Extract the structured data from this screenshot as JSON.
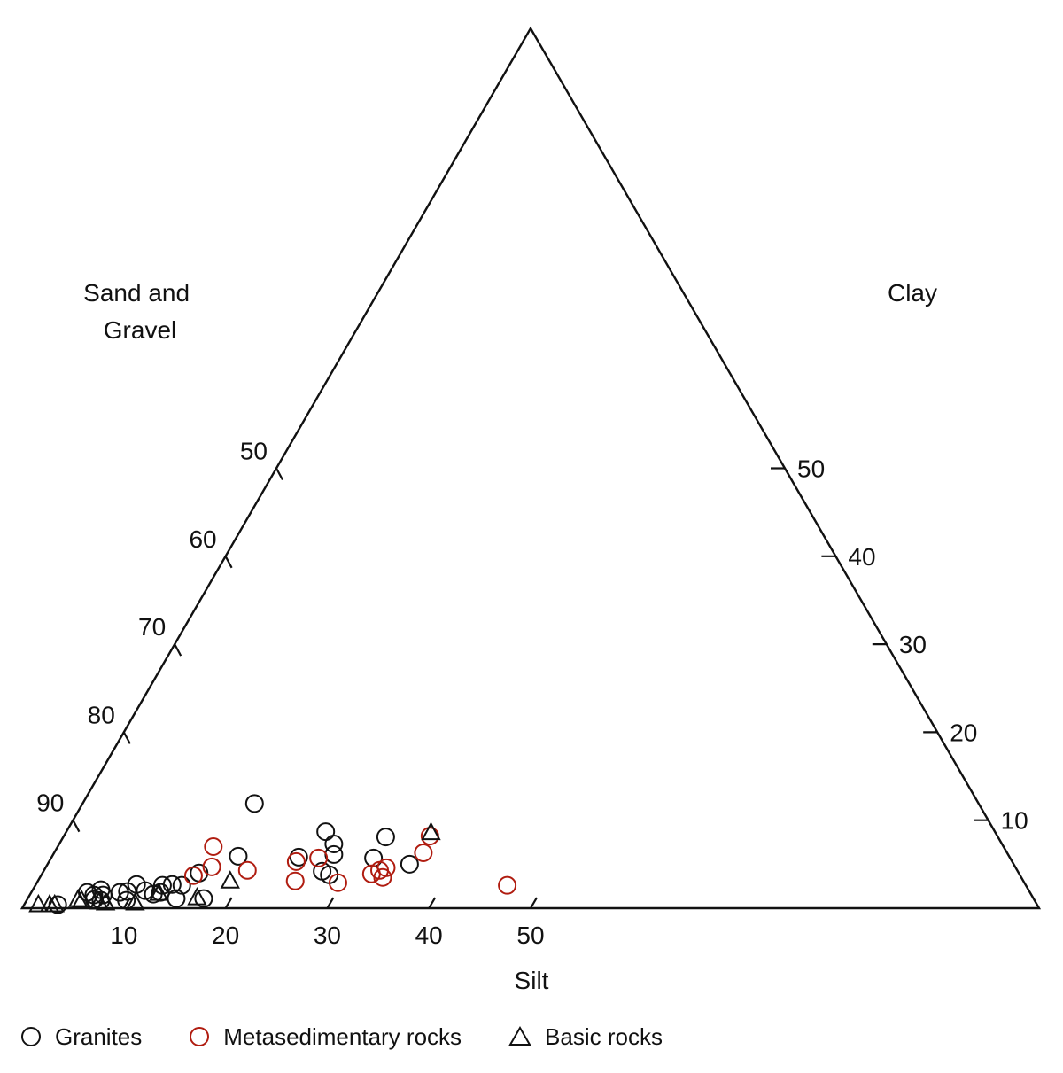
{
  "chart_data": {
    "type": "scatter",
    "subtype": "ternary",
    "axes": {
      "sand_gravel": {
        "label": "Sand and Gravel",
        "ticks": [
          "50",
          "60",
          "70",
          "80",
          "90"
        ]
      },
      "clay": {
        "label": "Clay",
        "ticks": [
          "50",
          "40",
          "30",
          "20",
          "10"
        ]
      },
      "silt": {
        "label": "Silt",
        "ticks": [
          "10",
          "20",
          "30",
          "40",
          "50"
        ]
      }
    },
    "series": [
      {
        "name": "Granites",
        "marker": "circle",
        "color": "#111111",
        "points": [
          {
            "silt": 3.3,
            "clay": 0.4
          },
          {
            "silt": 5.5,
            "clay": 1.8
          },
          {
            "silt": 6.3,
            "clay": 1.5
          },
          {
            "silt": 6.7,
            "clay": 2.1
          },
          {
            "silt": 7.2,
            "clay": 1.5
          },
          {
            "silt": 6.6,
            "clay": 1.0
          },
          {
            "silt": 7.3,
            "clay": 0.9
          },
          {
            "silt": 8.7,
            "clay": 1.8
          },
          {
            "silt": 9.4,
            "clay": 1.9
          },
          {
            "silt": 9.9,
            "clay": 2.7
          },
          {
            "silt": 9.8,
            "clay": 0.9
          },
          {
            "silt": 11.1,
            "clay": 2.0
          },
          {
            "silt": 12.1,
            "clay": 1.6
          },
          {
            "silt": 12.5,
            "clay": 2.6
          },
          {
            "silt": 12.7,
            "clay": 1.8
          },
          {
            "silt": 13.4,
            "clay": 2.7
          },
          {
            "silt": 14.4,
            "clay": 2.6
          },
          {
            "silt": 14.6,
            "clay": 1.1
          },
          {
            "silt": 15.4,
            "clay": 4.0
          },
          {
            "silt": 17.3,
            "clay": 1.1
          },
          {
            "silt": 18.3,
            "clay": 5.9
          },
          {
            "silt": 16.9,
            "clay": 11.9
          },
          {
            "silt": 24.3,
            "clay": 5.8
          },
          {
            "silt": 25.5,
            "clay": 8.7
          },
          {
            "silt": 27.0,
            "clay": 7.3
          },
          {
            "silt": 27.6,
            "clay": 6.1
          },
          {
            "silt": 27.4,
            "clay": 4.2
          },
          {
            "silt": 28.3,
            "clay": 3.8
          },
          {
            "silt": 31.7,
            "clay": 5.7
          },
          {
            "silt": 31.7,
            "clay": 8.1
          },
          {
            "silt": 35.6,
            "clay": 5.0
          }
        ]
      },
      {
        "name": "Metasedimentary rocks",
        "marker": "circle",
        "color": "#b01c10",
        "points": [
          {
            "silt": 15.0,
            "clay": 3.7
          },
          {
            "silt": 15.3,
            "clay": 7.0
          },
          {
            "silt": 16.3,
            "clay": 4.7
          },
          {
            "silt": 20.0,
            "clay": 4.3
          },
          {
            "silt": 24.3,
            "clay": 5.3
          },
          {
            "silt": 25.3,
            "clay": 3.1
          },
          {
            "silt": 26.3,
            "clay": 5.7
          },
          {
            "silt": 29.6,
            "clay": 2.9
          },
          {
            "silt": 32.4,
            "clay": 3.9
          },
          {
            "silt": 33.0,
            "clay": 4.3
          },
          {
            "silt": 33.5,
            "clay": 4.6
          },
          {
            "silt": 33.7,
            "clay": 3.5
          },
          {
            "silt": 36.3,
            "clay": 6.3
          },
          {
            "silt": 36.0,
            "clay": 8.2
          },
          {
            "silt": 46.4,
            "clay": 2.6
          }
        ]
      },
      {
        "name": "Basic rocks",
        "marker": "triangle",
        "color": "#111111",
        "points": [
          {
            "silt": 1.4,
            "clay": 0.4
          },
          {
            "silt": 2.5,
            "clay": 0.4
          },
          {
            "silt": 3.0,
            "clay": 0.4
          },
          {
            "silt": 5.0,
            "clay": 1.0
          },
          {
            "silt": 5.4,
            "clay": 0.9
          },
          {
            "silt": 7.2,
            "clay": 0.7
          },
          {
            "silt": 7.9,
            "clay": 0.6
          },
          {
            "silt": 10.8,
            "clay": 0.6
          },
          {
            "silt": 12.6,
            "clay": 1.7
          },
          {
            "silt": 16.6,
            "clay": 1.2
          },
          {
            "silt": 18.9,
            "clay": 3.1
          },
          {
            "silt": 35.9,
            "clay": 8.6
          }
        ]
      }
    ]
  }
}
